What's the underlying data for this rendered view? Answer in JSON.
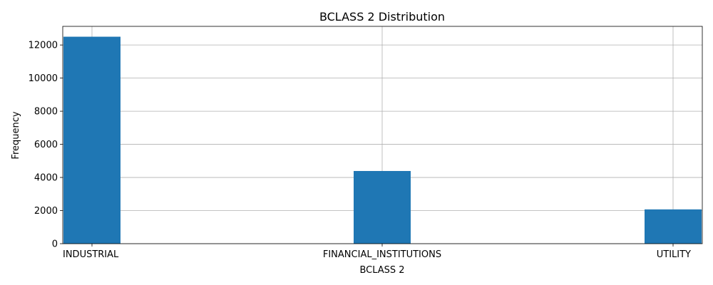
{
  "chart_data": {
    "type": "bar",
    "title": "BCLASS 2 Distribution",
    "xlabel": "BCLASS 2",
    "ylabel": "Frequency",
    "categories": [
      "INDUSTRIAL",
      "FINANCIAL_INSTITUTIONS",
      "UTILITY"
    ],
    "values": [
      12500,
      4390,
      2070
    ],
    "ylim": [
      0,
      13125
    ],
    "yticks": [
      0,
      2000,
      4000,
      6000,
      8000,
      10000,
      12000
    ],
    "grid": true,
    "bar_color": "#1f77b4"
  }
}
